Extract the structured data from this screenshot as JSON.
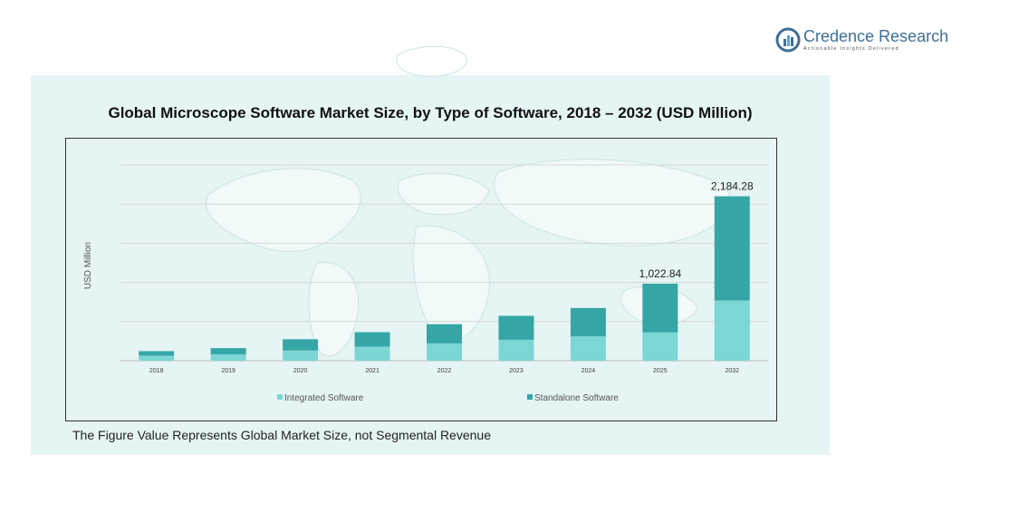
{
  "logo": {
    "name": "Credence Research",
    "tagline": "Actionable Insights Delivered",
    "icon": "bar-chart-circle-logo"
  },
  "footnote": "The Figure Value Represents Global Market Size, not Segmental Revenue",
  "colors": {
    "panel_bg": "#e5f4f4",
    "integrated": "#7dd6d6",
    "standalone": "#35a6a5",
    "logo_blue": "#3f6f96"
  },
  "chart_data": {
    "type": "bar",
    "stacked": true,
    "title": "Global Microscope  Software Market Size, by Type of Software, 2018 – 2032 (USD Million)",
    "xlabel": "",
    "ylabel": "USD Million",
    "categories": [
      "2018",
      "2019",
      "2020",
      "2021",
      "2022",
      "2023",
      "2024",
      "2025",
      "2032"
    ],
    "series": [
      {
        "name": "Integrated Software",
        "color": "#7dd6d6",
        "values": [
          67,
          85,
          135,
          187,
          230,
          278,
          325,
          375,
          800
        ]
      },
      {
        "name": "Standalone Software",
        "color": "#35a6a5",
        "values": [
          60,
          82,
          150,
          192,
          255,
          318,
          375,
          648,
          1384
        ]
      }
    ],
    "totals": [
      127,
      167,
      285,
      379,
      485,
      596,
      700,
      1022.84,
      2184.28
    ],
    "data_labels": [
      "",
      "",
      "",
      "",
      "",
      "",
      "",
      "1,022.84",
      "2,184.28"
    ],
    "ylim": [
      0,
      2600
    ],
    "grid": true,
    "legend_position": "bottom"
  }
}
